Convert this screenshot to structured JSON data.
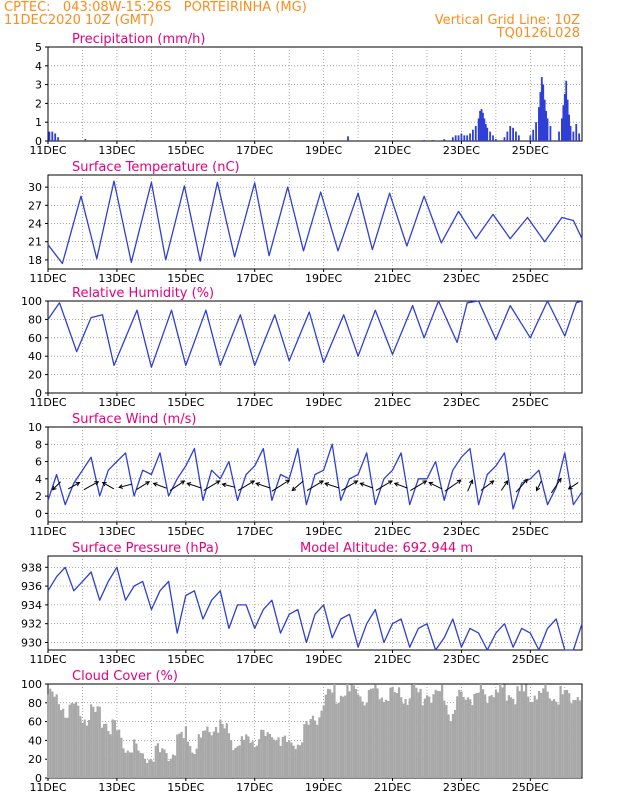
{
  "header": {
    "line1_left": "CPTEC:   043:08W-15:26S   PORTEIRINHA (MG)",
    "line2_left": "11DEC2020 10Z (GMT)",
    "line1_right": "Vertical Grid Line: 10Z",
    "line2_right": "TQ0126L028"
  },
  "colors": {
    "header": "#ff8c1a",
    "title": "#e6007e",
    "series": "#2f3fd6",
    "cloud": "#a8a8a8",
    "grid": "#777777"
  },
  "chart_data": [
    {
      "id": "precip",
      "type": "bar",
      "title": "Precipitation (mm/h)",
      "x_ticks": [
        "11DEC",
        "13DEC",
        "15DEC",
        "17DEC",
        "19DEC",
        "21DEC",
        "23DEC",
        "25DEC"
      ],
      "y_ticks": [
        "0",
        "1",
        "2",
        "3",
        "4",
        "5"
      ],
      "ylim": [
        0,
        5
      ],
      "xlim_hours": [
        0,
        372
      ],
      "series": [
        {
          "values": [
            {
              "x": 1,
              "y": 0.5
            },
            {
              "x": 3,
              "y": 0.5
            },
            {
              "x": 5,
              "y": 0.4
            },
            {
              "x": 7,
              "y": 0.2
            },
            {
              "x": 26,
              "y": 0.1
            },
            {
              "x": 62,
              "y": 0.05
            },
            {
              "x": 209,
              "y": 0.25
            },
            {
              "x": 262,
              "y": 0.05
            },
            {
              "x": 268,
              "y": 0.05
            },
            {
              "x": 276,
              "y": 0.1
            },
            {
              "x": 282,
              "y": 0.2
            },
            {
              "x": 284,
              "y": 0.3
            },
            {
              "x": 286,
              "y": 0.3
            },
            {
              "x": 288,
              "y": 0.4
            },
            {
              "x": 290,
              "y": 0.3
            },
            {
              "x": 292,
              "y": 0.3
            },
            {
              "x": 294,
              "y": 0.4
            },
            {
              "x": 296,
              "y": 0.6
            },
            {
              "x": 298,
              "y": 0.8
            },
            {
              "x": 300,
              "y": 1.2
            },
            {
              "x": 301,
              "y": 1.6
            },
            {
              "x": 302,
              "y": 1.7
            },
            {
              "x": 303,
              "y": 1.5
            },
            {
              "x": 304,
              "y": 1.2
            },
            {
              "x": 305,
              "y": 0.9
            },
            {
              "x": 306,
              "y": 0.7
            },
            {
              "x": 308,
              "y": 0.5
            },
            {
              "x": 310,
              "y": 0.3
            },
            {
              "x": 312,
              "y": 0.1
            },
            {
              "x": 318,
              "y": 0.2
            },
            {
              "x": 320,
              "y": 0.5
            },
            {
              "x": 322,
              "y": 0.8
            },
            {
              "x": 324,
              "y": 0.7
            },
            {
              "x": 326,
              "y": 0.5
            },
            {
              "x": 328,
              "y": 0.3
            },
            {
              "x": 336,
              "y": 0.3
            },
            {
              "x": 338,
              "y": 0.6
            },
            {
              "x": 340,
              "y": 1.0
            },
            {
              "x": 342,
              "y": 1.8
            },
            {
              "x": 343,
              "y": 2.6
            },
            {
              "x": 344,
              "y": 3.4
            },
            {
              "x": 345,
              "y": 3.0
            },
            {
              "x": 346,
              "y": 2.2
            },
            {
              "x": 347,
              "y": 1.6
            },
            {
              "x": 348,
              "y": 1.2
            },
            {
              "x": 350,
              "y": 0.8
            },
            {
              "x": 356,
              "y": 0.5
            },
            {
              "x": 358,
              "y": 1.2
            },
            {
              "x": 359,
              "y": 1.9
            },
            {
              "x": 360,
              "y": 2.5
            },
            {
              "x": 361,
              "y": 3.2
            },
            {
              "x": 362,
              "y": 2.2
            },
            {
              "x": 363,
              "y": 1.4
            },
            {
              "x": 364,
              "y": 0.8
            },
            {
              "x": 366,
              "y": 0.5
            },
            {
              "x": 368,
              "y": 0.9
            },
            {
              "x": 370,
              "y": 0.4
            }
          ]
        }
      ]
    },
    {
      "id": "temp",
      "type": "line",
      "title": "Surface Temperature (nC)",
      "x_ticks": [
        "11DEC",
        "13DEC",
        "15DEC",
        "17DEC",
        "19DEC",
        "21DEC",
        "23DEC",
        "25DEC"
      ],
      "y_ticks": [
        "18",
        "21",
        "24",
        "27",
        "30"
      ],
      "ylim": [
        16.5,
        32
      ],
      "series": [
        {
          "x": [
            0,
            10,
            23,
            34,
            46,
            58,
            72,
            82,
            95,
            106,
            118,
            130,
            144,
            154,
            167,
            178,
            190,
            202,
            216,
            226,
            238,
            250,
            262,
            274,
            286,
            298,
            310,
            322,
            334,
            346,
            358,
            366,
            372
          ],
          "values": [
            20.5,
            17.4,
            28.5,
            18.2,
            31.0,
            17.6,
            30.8,
            18.0,
            30.2,
            17.8,
            30.8,
            18.5,
            30.7,
            18.7,
            30.0,
            19.5,
            29.2,
            19.5,
            29.0,
            19.7,
            29.0,
            20.3,
            28.5,
            20.8,
            26.0,
            21.5,
            25.5,
            21.5,
            25.0,
            21.0,
            25.0,
            24.5,
            21.5
          ]
        }
      ]
    },
    {
      "id": "rh",
      "type": "line",
      "title": "Relative Humidity (%)",
      "x_ticks": [
        "11DEC",
        "13DEC",
        "15DEC",
        "17DEC",
        "19DEC",
        "21DEC",
        "23DEC",
        "25DEC"
      ],
      "y_ticks": [
        "0",
        "20",
        "40",
        "60",
        "80",
        "100"
      ],
      "ylim": [
        0,
        100
      ],
      "series": [
        {
          "x": [
            0,
            8,
            20,
            30,
            38,
            46,
            62,
            72,
            86,
            96,
            110,
            120,
            134,
            144,
            158,
            168,
            182,
            192,
            206,
            216,
            228,
            240,
            254,
            262,
            272,
            285,
            292,
            300,
            312,
            322,
            336,
            348,
            360,
            368,
            372
          ],
          "values": [
            80,
            98,
            45,
            82,
            85,
            30,
            90,
            28,
            90,
            30,
            90,
            30,
            85,
            30,
            85,
            35,
            88,
            33,
            85,
            40,
            90,
            42,
            95,
            60,
            100,
            55,
            98,
            100,
            58,
            95,
            60,
            100,
            62,
            98,
            100
          ]
        }
      ]
    },
    {
      "id": "wind",
      "type": "line",
      "title": "Surface Wind (m/s)",
      "x_ticks": [
        "11DEC",
        "13DEC",
        "15DEC",
        "17DEC",
        "19DEC",
        "21DEC",
        "23DEC",
        "25DEC"
      ],
      "y_ticks": [
        "0",
        "2",
        "4",
        "6",
        "8",
        "10"
      ],
      "ylim": [
        -1,
        10
      ],
      "series": [
        {
          "x": [
            0,
            6,
            12,
            18,
            24,
            30,
            36,
            42,
            48,
            54,
            60,
            66,
            72,
            78,
            84,
            90,
            96,
            102,
            108,
            114,
            120,
            126,
            132,
            138,
            144,
            150,
            156,
            162,
            168,
            174,
            180,
            186,
            192,
            198,
            204,
            210,
            216,
            222,
            228,
            234,
            240,
            246,
            252,
            258,
            264,
            270,
            276,
            282,
            288,
            294,
            300,
            306,
            312,
            318,
            324,
            330,
            336,
            342,
            348,
            354,
            360,
            366,
            372
          ],
          "values": [
            1.5,
            4.5,
            1.0,
            3.5,
            5.0,
            6.5,
            2.0,
            5.0,
            6.0,
            7.0,
            2.0,
            5.0,
            4.5,
            7.0,
            2.0,
            4.0,
            5.5,
            7.5,
            1.5,
            5.0,
            4.0,
            6.0,
            1.5,
            4.5,
            5.5,
            7.5,
            1.5,
            4.5,
            4.0,
            7.5,
            1.0,
            4.5,
            5.0,
            8.0,
            1.5,
            4.0,
            4.5,
            7.0,
            1.0,
            4.0,
            5.0,
            7.0,
            1.0,
            4.0,
            4.0,
            6.0,
            1.5,
            5.0,
            6.5,
            7.5,
            1.0,
            4.5,
            5.5,
            7.0,
            0.5,
            3.5,
            4.0,
            5.0,
            1.0,
            3.0,
            7.0,
            1.0,
            2.5
          ]
        }
      ],
      "vectors": [
        {
          "x": 6,
          "u": -0.5,
          "v": -0.5
        },
        {
          "x": 18,
          "u": 0.7,
          "v": 0.4
        },
        {
          "x": 30,
          "u": 0.9,
          "v": 0.5
        },
        {
          "x": 42,
          "u": -0.7,
          "v": 0.4
        },
        {
          "x": 54,
          "u": -0.8,
          "v": -0.2
        },
        {
          "x": 66,
          "u": 0.8,
          "v": 0.5
        },
        {
          "x": 78,
          "u": -0.8,
          "v": 0.3
        },
        {
          "x": 90,
          "u": 0.9,
          "v": 0.6
        },
        {
          "x": 102,
          "u": -0.9,
          "v": 0.3
        },
        {
          "x": 114,
          "u": 1.0,
          "v": 0.6
        },
        {
          "x": 126,
          "u": -0.8,
          "v": 0.2
        },
        {
          "x": 138,
          "u": 1.0,
          "v": 0.6
        },
        {
          "x": 150,
          "u": -0.9,
          "v": 0.3
        },
        {
          "x": 162,
          "u": 1.1,
          "v": 0.7
        },
        {
          "x": 174,
          "u": -0.7,
          "v": -0.6
        },
        {
          "x": 186,
          "u": 1.0,
          "v": 0.6
        },
        {
          "x": 198,
          "u": -0.9,
          "v": 0.3
        },
        {
          "x": 210,
          "u": 1.0,
          "v": 0.6
        },
        {
          "x": 222,
          "u": -0.8,
          "v": 0.3
        },
        {
          "x": 234,
          "u": 1.0,
          "v": 0.6
        },
        {
          "x": 246,
          "u": -0.8,
          "v": 0.3
        },
        {
          "x": 258,
          "u": 1.0,
          "v": 0.6
        },
        {
          "x": 270,
          "u": -0.8,
          "v": 0.4
        },
        {
          "x": 282,
          "u": 1.0,
          "v": 0.7
        },
        {
          "x": 294,
          "u": 0.3,
          "v": 0.7
        },
        {
          "x": 306,
          "u": 0.8,
          "v": 0.6
        },
        {
          "x": 318,
          "u": 0.4,
          "v": 0.6
        },
        {
          "x": 330,
          "u": 0.7,
          "v": 0.8
        },
        {
          "x": 342,
          "u": -0.3,
          "v": -0.6
        },
        {
          "x": 354,
          "u": 0.6,
          "v": 0.9
        },
        {
          "x": 366,
          "u": -0.6,
          "v": -0.4
        }
      ]
    },
    {
      "id": "pres",
      "type": "line",
      "title": "Surface Pressure (hPa)",
      "subtitle": "Model Altitude: 692.944 m",
      "x_ticks": [
        "11DEC",
        "13DEC",
        "15DEC",
        "17DEC",
        "19DEC",
        "21DEC",
        "23DEC",
        "25DEC"
      ],
      "y_ticks": [
        "930",
        "932",
        "934",
        "936",
        "938"
      ],
      "ylim": [
        929.2,
        939.2
      ],
      "series": [
        {
          "x": [
            0,
            6,
            12,
            18,
            24,
            30,
            36,
            42,
            48,
            54,
            60,
            66,
            72,
            78,
            84,
            90,
            96,
            102,
            108,
            114,
            120,
            126,
            132,
            138,
            144,
            150,
            156,
            162,
            168,
            174,
            180,
            186,
            192,
            198,
            204,
            210,
            216,
            222,
            228,
            234,
            240,
            246,
            252,
            258,
            264,
            270,
            276,
            282,
            288,
            294,
            300,
            306,
            312,
            318,
            324,
            330,
            336,
            342,
            348,
            354,
            360,
            366,
            372
          ],
          "values": [
            935.5,
            937.0,
            938.0,
            935.5,
            936.5,
            937.5,
            934.5,
            936.5,
            938.0,
            934.5,
            936.0,
            936.5,
            933.5,
            935.5,
            936.5,
            931.0,
            935.0,
            935.5,
            932.5,
            934.5,
            935.5,
            931.5,
            934.0,
            934.0,
            931.5,
            933.5,
            934.5,
            931.0,
            933.0,
            933.5,
            930.0,
            933.0,
            934.0,
            930.5,
            932.5,
            933.0,
            929.5,
            932.0,
            933.5,
            930.0,
            932.0,
            932.5,
            929.5,
            931.5,
            932.0,
            929.0,
            930.5,
            932.5,
            929.5,
            931.5,
            931.0,
            929.0,
            931.0,
            932.0,
            929.5,
            931.5,
            931.0,
            929.0,
            931.5,
            932.5,
            929.0,
            929.0,
            932.0
          ]
        }
      ]
    },
    {
      "id": "cloud",
      "type": "bar",
      "title": "Cloud Cover (%)",
      "x_ticks": [
        "11DEC",
        "13DEC",
        "15DEC",
        "17DEC",
        "19DEC",
        "21DEC",
        "23DEC",
        "25DEC"
      ],
      "y_ticks": [
        "0",
        "20",
        "40",
        "60",
        "80",
        "100"
      ],
      "ylim": [
        0,
        100
      ],
      "series": [
        {
          "x": [
            0,
            12,
            24,
            36,
            48,
            54,
            60,
            66,
            72,
            80,
            88,
            96,
            104,
            112,
            120,
            128,
            136,
            144,
            152,
            160,
            168,
            176,
            184,
            190,
            196,
            204,
            216,
            228,
            240,
            252,
            264,
            276,
            282,
            288,
            294,
            300,
            312,
            324,
            336,
            348,
            360,
            372
          ],
          "values": [
            95,
            80,
            75,
            70,
            55,
            40,
            45,
            25,
            35,
            30,
            40,
            50,
            40,
            55,
            65,
            45,
            40,
            50,
            45,
            55,
            40,
            50,
            60,
            85,
            95,
            95,
            95,
            95,
            95,
            95,
            95,
            95,
            70,
            95,
            95,
            95,
            95,
            95,
            95,
            95,
            95,
            95
          ]
        }
      ]
    }
  ]
}
